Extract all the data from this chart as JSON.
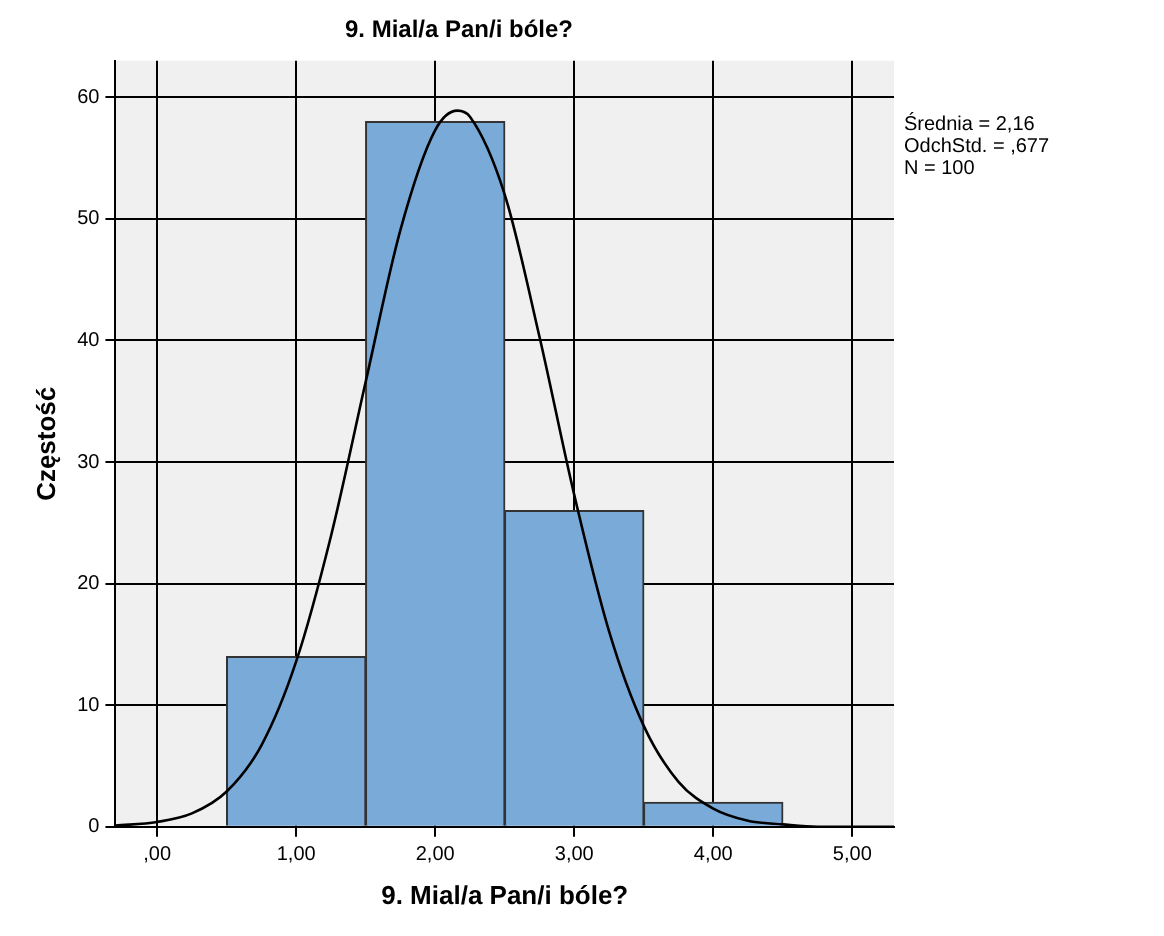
{
  "chart_data": {
    "type": "histogram",
    "title": "9. Mial/a Pan/i bóle?",
    "xlabel": "9. Mial/a Pan/i bóle?",
    "ylabel": "Częstość",
    "bins": [
      0.5,
      1.5,
      2.5,
      3.5,
      4.5
    ],
    "values": [
      14,
      58,
      26,
      2
    ],
    "color": "#7aaad8",
    "series": [
      {
        "type": "line",
        "color": "#000000",
        "x": [
          -0.3,
          0,
          0.25,
          0.5,
          0.75,
          1,
          1.25,
          1.5,
          1.75,
          2,
          2.16,
          2.25,
          2.5,
          2.75,
          3,
          3.25,
          3.5,
          3.75,
          4,
          4.25,
          4.5,
          4.75,
          5,
          5.3
        ],
        "values": [
          0.1,
          0.4,
          1.1,
          2.9,
          6.7,
          13.6,
          23.9,
          36.6,
          49.1,
          57.3,
          58.9,
          58.4,
          52,
          40.3,
          27.3,
          16.1,
          8.3,
          3.7,
          1.5,
          0.5,
          0.2,
          0,
          0,
          0
        ]
      }
    ],
    "xlim": [
      -0.3,
      5.3
    ],
    "ylim": [
      0,
      63
    ],
    "xticks": [
      {
        "value": 0,
        "label": ",00"
      },
      {
        "value": 1,
        "label": "1,00"
      },
      {
        "value": 2,
        "label": "2,00"
      },
      {
        "value": 3,
        "label": "3,00"
      },
      {
        "value": 4,
        "label": "4,00"
      },
      {
        "value": 5,
        "label": "5,00"
      }
    ],
    "yticks": [
      0,
      10,
      20,
      30,
      40,
      50,
      60
    ],
    "grid": true,
    "marker": "none",
    "line_style": "solid",
    "annotations": [
      "Średnia = 2,16",
      "OdchStd. = ,677",
      "N = 100"
    ]
  }
}
